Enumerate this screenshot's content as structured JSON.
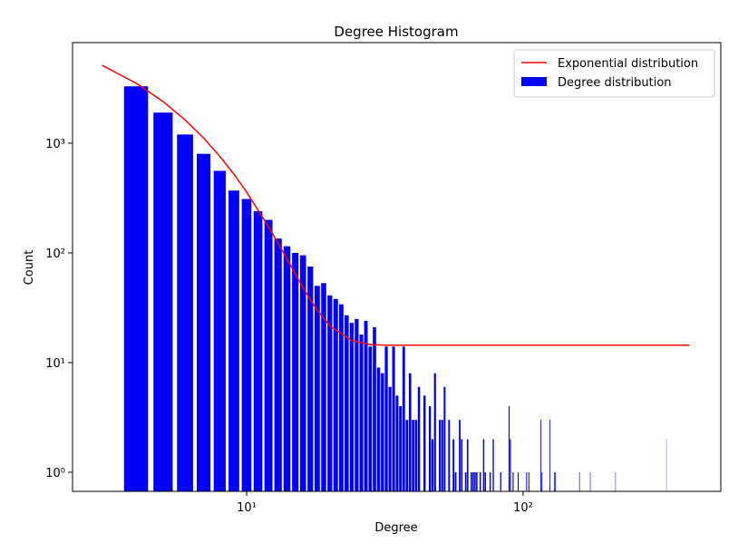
{
  "chart_data": {
    "type": "histogram-loglog",
    "title": "Degree Histogram",
    "xlabel": "Degree",
    "ylabel": "Count",
    "xscale": "log",
    "yscale": "log",
    "xlim": [
      2.345,
      519
    ],
    "ylim": [
      0.67,
      8260
    ],
    "xticks": [
      {
        "value": 10,
        "label": "10¹"
      },
      {
        "value": 100,
        "label": "10²"
      }
    ],
    "yticks": [
      {
        "value": 1,
        "label": "10⁰"
      },
      {
        "value": 10,
        "label": "10¹"
      },
      {
        "value": 100,
        "label": "10²"
      },
      {
        "value": 1000,
        "label": "10³"
      }
    ],
    "legend": "upper right",
    "series": [
      {
        "name": "Degree distribution",
        "type": "bar",
        "color": "#0000ff",
        "bar_width": 0.8,
        "x": [
          4,
          5,
          6,
          7,
          8,
          9,
          10,
          11,
          12,
          13,
          14,
          15,
          16,
          17,
          18,
          19,
          20,
          21,
          22,
          23,
          24,
          25,
          26,
          27,
          28,
          29,
          30,
          31,
          32,
          33,
          34,
          35,
          36,
          37,
          38,
          39,
          40,
          41,
          42,
          44,
          46,
          47,
          48,
          50,
          51,
          52,
          54,
          56,
          57,
          59,
          60,
          62,
          63,
          65,
          66,
          67,
          68,
          70,
          72,
          73,
          76,
          78,
          83,
          89,
          90,
          92,
          96,
          103,
          105,
          116,
          117,
          125,
          130,
          131,
          160,
          175,
          216,
          330
        ],
        "values": [
          3300,
          1900,
          1200,
          800,
          560,
          370,
          310,
          240,
          200,
          135,
          115,
          100,
          95,
          75,
          50,
          53,
          41,
          38,
          34,
          27,
          23,
          25,
          18,
          24,
          14,
          21,
          9,
          8,
          14,
          6,
          14,
          5,
          4,
          14,
          3,
          8,
          3,
          3,
          6,
          5,
          4,
          2,
          8,
          3,
          3,
          6,
          3,
          2,
          1,
          3,
          2,
          1,
          2,
          1,
          1,
          1,
          1,
          1,
          2,
          1,
          1,
          2,
          1,
          4,
          2,
          1,
          1,
          1,
          1,
          3,
          1,
          3,
          1,
          1,
          1,
          1,
          1,
          2
        ]
      },
      {
        "name": "Exponential distribution",
        "type": "line",
        "color": "#ff0000",
        "x": [
          3,
          4,
          5,
          6,
          7,
          8,
          9,
          10,
          12,
          14,
          16,
          18,
          20,
          24,
          28,
          32,
          40,
          400
        ],
        "values": [
          5140,
          3498,
          2382,
          1624,
          1109,
          758,
          520,
          358,
          173,
          88,
          48,
          30,
          21.6,
          15.9,
          14.6,
          14.4,
          14.4,
          14.4
        ]
      }
    ]
  }
}
